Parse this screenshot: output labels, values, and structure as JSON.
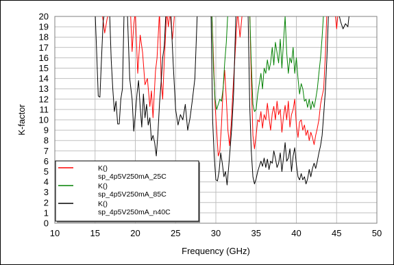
{
  "chart_data": {
    "type": "line",
    "title": "",
    "xlabel": "Frequency (GHz)",
    "ylabel": "K-factor",
    "xlim": [
      10,
      50
    ],
    "ylim": [
      0,
      20
    ],
    "xticks": [
      10,
      15,
      20,
      25,
      30,
      35,
      40,
      45,
      50
    ],
    "yticks": [
      0,
      1,
      2,
      3,
      4,
      5,
      6,
      7,
      8,
      9,
      10,
      11,
      12,
      13,
      14,
      15,
      16,
      17,
      18,
      19,
      20
    ],
    "grid": true,
    "legend": {
      "position": "bottom-left",
      "entries": [
        {
          "line1": "K()",
          "line2": "sp_4p5V250mA_25C",
          "color": "#ff0000"
        },
        {
          "line1": "K()",
          "line2": "sp_4p5V250mA_85C",
          "color": "#008000"
        },
        {
          "line1": "K()",
          "line2": "sp_4p5V250mA_n40C",
          "color": "#000000"
        }
      ]
    },
    "series": [
      {
        "name": "sp_4p5V250mA_25C",
        "color": "#ff0000",
        "points": [
          [
            15.8,
            20.5
          ],
          [
            16.0,
            19.6
          ],
          [
            16.2,
            18.4
          ],
          [
            16.5,
            19.8
          ],
          [
            16.8,
            20.5
          ],
          [
            19.4,
            20.5
          ],
          [
            19.6,
            16.6
          ],
          [
            19.8,
            19.2
          ],
          [
            20.0,
            20.5
          ],
          [
            20.3,
            14.5
          ],
          [
            20.6,
            18.2
          ],
          [
            20.9,
            16.5
          ],
          [
            21.2,
            13.4
          ],
          [
            21.5,
            14.0
          ],
          [
            21.8,
            11.3
          ],
          [
            22.0,
            12.8
          ],
          [
            22.2,
            10.2
          ],
          [
            22.5,
            14.7
          ],
          [
            22.7,
            16.0
          ],
          [
            23.0,
            20.5
          ],
          [
            23.2,
            14.0
          ],
          [
            23.4,
            12.0
          ],
          [
            23.6,
            15.8
          ],
          [
            23.9,
            20.5
          ],
          [
            24.1,
            19.0
          ],
          [
            24.3,
            20.5
          ],
          [
            24.6,
            17.8
          ],
          [
            24.9,
            20.5
          ],
          [
            29.5,
            20.5
          ],
          [
            29.7,
            16.0
          ],
          [
            29.9,
            11.5
          ],
          [
            30.1,
            9.0
          ],
          [
            30.3,
            6.5
          ],
          [
            30.5,
            7.0
          ],
          [
            30.7,
            9.5
          ],
          [
            30.9,
            13.0
          ],
          [
            31.1,
            14.8
          ],
          [
            31.3,
            12.0
          ],
          [
            31.5,
            9.0
          ],
          [
            31.7,
            7.5
          ],
          [
            31.9,
            9.5
          ],
          [
            32.1,
            12.5
          ],
          [
            32.4,
            16.5
          ],
          [
            32.7,
            20.5
          ],
          [
            33.0,
            18.0
          ],
          [
            33.3,
            20.5
          ],
          [
            34.2,
            20.5
          ],
          [
            34.4,
            14.0
          ],
          [
            34.6,
            8.5
          ],
          [
            34.8,
            7.2
          ],
          [
            35.0,
            8.5
          ],
          [
            35.2,
            10.0
          ],
          [
            35.4,
            9.8
          ],
          [
            35.6,
            10.8
          ],
          [
            35.8,
            9.2
          ],
          [
            36.0,
            10.5
          ],
          [
            36.2,
            10.0
          ],
          [
            36.4,
            11.6
          ],
          [
            36.6,
            10.2
          ],
          [
            36.8,
            9.0
          ],
          [
            37.0,
            10.6
          ],
          [
            37.2,
            11.3
          ],
          [
            37.4,
            10.0
          ],
          [
            37.6,
            11.8
          ],
          [
            37.8,
            10.5
          ],
          [
            38.0,
            11.0
          ],
          [
            38.2,
            8.8
          ],
          [
            38.4,
            10.3
          ],
          [
            38.6,
            11.4
          ],
          [
            38.8,
            10.0
          ],
          [
            39.0,
            11.8
          ],
          [
            39.2,
            9.3
          ],
          [
            39.4,
            10.5
          ],
          [
            39.6,
            11.0
          ],
          [
            39.8,
            12.0
          ],
          [
            40.0,
            9.5
          ],
          [
            40.2,
            8.3
          ],
          [
            40.4,
            9.8
          ],
          [
            40.6,
            10.0
          ],
          [
            40.8,
            9.0
          ],
          [
            41.0,
            9.5
          ],
          [
            41.2,
            8.5
          ],
          [
            41.4,
            9.0
          ],
          [
            41.6,
            8.0
          ],
          [
            41.8,
            8.8
          ],
          [
            42.0,
            8.3
          ],
          [
            42.2,
            7.6
          ],
          [
            42.4,
            8.5
          ],
          [
            42.6,
            9.2
          ],
          [
            42.8,
            10.0
          ],
          [
            43.0,
            11.5
          ],
          [
            43.2,
            12.3
          ],
          [
            43.4,
            13.0
          ],
          [
            43.6,
            16.2
          ],
          [
            43.8,
            20.5
          ],
          [
            44.8,
            20.5
          ],
          [
            45.0,
            18.8
          ],
          [
            45.2,
            20.5
          ]
        ]
      },
      {
        "name": "sp_4p5V250mA_85C",
        "color": "#008000",
        "points": [
          [
            29.5,
            20.5
          ],
          [
            29.7,
            15.0
          ],
          [
            29.9,
            12.0
          ],
          [
            30.1,
            11.0
          ],
          [
            30.3,
            11.5
          ],
          [
            30.5,
            12.0
          ],
          [
            30.7,
            11.8
          ],
          [
            30.9,
            13.0
          ],
          [
            31.1,
            15.5
          ],
          [
            31.3,
            17.5
          ],
          [
            31.5,
            20.5
          ],
          [
            34.2,
            20.5
          ],
          [
            34.4,
            15.5
          ],
          [
            34.6,
            11.5
          ],
          [
            34.8,
            10.8
          ],
          [
            35.0,
            11.0
          ],
          [
            35.2,
            12.5
          ],
          [
            35.4,
            13.5
          ],
          [
            35.6,
            14.5
          ],
          [
            35.8,
            13.0
          ],
          [
            36.0,
            15.0
          ],
          [
            36.2,
            14.5
          ],
          [
            36.4,
            15.8
          ],
          [
            36.6,
            14.8
          ],
          [
            36.8,
            15.5
          ],
          [
            37.0,
            17.0
          ],
          [
            37.2,
            15.3
          ],
          [
            37.4,
            17.5
          ],
          [
            37.6,
            16.5
          ],
          [
            37.8,
            15.5
          ],
          [
            38.0,
            17.8
          ],
          [
            38.2,
            15.0
          ],
          [
            38.4,
            17.5
          ],
          [
            38.6,
            20.0
          ],
          [
            38.8,
            16.5
          ],
          [
            39.0,
            14.5
          ],
          [
            39.2,
            16.0
          ],
          [
            39.4,
            15.5
          ],
          [
            39.6,
            17.0
          ],
          [
            39.8,
            14.5
          ],
          [
            40.0,
            16.0
          ],
          [
            40.2,
            14.0
          ],
          [
            40.4,
            12.5
          ],
          [
            40.6,
            13.5
          ],
          [
            40.8,
            13.0
          ],
          [
            41.0,
            11.8
          ],
          [
            41.2,
            12.0
          ],
          [
            41.4,
            11.2
          ],
          [
            41.6,
            12.0
          ],
          [
            41.8,
            11.0
          ],
          [
            42.0,
            11.8
          ],
          [
            42.2,
            11.2
          ],
          [
            42.4,
            12.0
          ],
          [
            42.6,
            13.0
          ],
          [
            42.8,
            14.5
          ],
          [
            43.0,
            16.0
          ],
          [
            43.2,
            18.0
          ],
          [
            43.4,
            20.5
          ]
        ]
      },
      {
        "name": "sp_4p5V250mA_n40C",
        "color": "#000000",
        "points": [
          [
            15.0,
            20.5
          ],
          [
            15.2,
            16.5
          ],
          [
            15.4,
            12.3
          ],
          [
            15.6,
            12.2
          ],
          [
            15.8,
            16.0
          ],
          [
            16.0,
            19.5
          ],
          [
            16.2,
            20.5
          ],
          [
            16.8,
            20.5
          ],
          [
            17.0,
            15.8
          ],
          [
            17.2,
            13.0
          ],
          [
            17.4,
            10.8
          ],
          [
            17.6,
            11.8
          ],
          [
            17.8,
            9.6
          ],
          [
            18.0,
            9.6
          ],
          [
            18.2,
            12.0
          ],
          [
            18.4,
            13.0
          ],
          [
            18.6,
            20.5
          ],
          [
            19.0,
            20.5
          ],
          [
            19.3,
            14.0
          ],
          [
            19.6,
            12.0
          ],
          [
            19.8,
            8.9
          ],
          [
            20.0,
            10.5
          ],
          [
            20.2,
            12.5
          ],
          [
            20.4,
            13.8
          ],
          [
            20.6,
            11.2
          ],
          [
            20.8,
            9.3
          ],
          [
            21.0,
            12.5
          ],
          [
            21.2,
            10.2
          ],
          [
            21.4,
            11.5
          ],
          [
            21.6,
            9.5
          ],
          [
            21.8,
            10.2
          ],
          [
            22.0,
            8.0
          ],
          [
            22.2,
            8.5
          ],
          [
            22.4,
            7.8
          ],
          [
            22.6,
            6.5
          ],
          [
            22.8,
            8.6
          ],
          [
            23.0,
            11.6
          ],
          [
            23.2,
            13.6
          ],
          [
            23.4,
            16.0
          ],
          [
            23.6,
            17.2
          ],
          [
            23.8,
            20.5
          ],
          [
            24.4,
            20.5
          ],
          [
            24.7,
            15.5
          ],
          [
            25.0,
            11.0
          ],
          [
            25.3,
            9.5
          ],
          [
            25.6,
            10.5
          ],
          [
            25.9,
            10.0
          ],
          [
            26.2,
            11.5
          ],
          [
            26.5,
            9.0
          ],
          [
            26.8,
            10.2
          ],
          [
            27.1,
            12.0
          ],
          [
            27.4,
            14.0
          ],
          [
            27.7,
            20.5
          ],
          [
            29.4,
            20.5
          ],
          [
            29.6,
            10.0
          ],
          [
            29.8,
            6.5
          ],
          [
            30.0,
            4.2
          ],
          [
            30.2,
            4.1
          ],
          [
            30.4,
            5.0
          ],
          [
            30.6,
            6.8
          ],
          [
            30.8,
            5.8
          ],
          [
            31.0,
            4.5
          ],
          [
            31.2,
            5.0
          ],
          [
            31.4,
            3.7
          ],
          [
            31.6,
            5.5
          ],
          [
            31.8,
            7.5
          ],
          [
            32.0,
            9.5
          ],
          [
            32.2,
            12.5
          ],
          [
            32.5,
            20.5
          ],
          [
            34.0,
            20.5
          ],
          [
            34.2,
            11.5
          ],
          [
            34.4,
            7.0
          ],
          [
            34.6,
            4.5
          ],
          [
            34.8,
            3.8
          ],
          [
            35.0,
            4.3
          ],
          [
            35.2,
            5.0
          ],
          [
            35.4,
            5.5
          ],
          [
            35.6,
            6.0
          ],
          [
            35.8,
            5.5
          ],
          [
            36.0,
            6.3
          ],
          [
            36.2,
            5.4
          ],
          [
            36.4,
            6.2
          ],
          [
            36.6,
            5.2
          ],
          [
            36.8,
            6.0
          ],
          [
            37.0,
            5.8
          ],
          [
            37.2,
            7.0
          ],
          [
            37.4,
            6.3
          ],
          [
            37.6,
            5.4
          ],
          [
            37.8,
            5.8
          ],
          [
            38.0,
            6.8
          ],
          [
            38.2,
            5.0
          ],
          [
            38.4,
            6.3
          ],
          [
            38.6,
            7.8
          ],
          [
            38.8,
            6.0
          ],
          [
            39.0,
            6.3
          ],
          [
            39.2,
            7.2
          ],
          [
            39.4,
            5.0
          ],
          [
            39.6,
            6.5
          ],
          [
            39.8,
            7.3
          ],
          [
            40.0,
            5.7
          ],
          [
            40.2,
            4.5
          ],
          [
            40.4,
            4.2
          ],
          [
            40.6,
            4.8
          ],
          [
            40.8,
            4.2
          ],
          [
            41.0,
            4.5
          ],
          [
            41.2,
            3.8
          ],
          [
            41.4,
            4.3
          ],
          [
            41.6,
            5.2
          ],
          [
            41.8,
            4.5
          ],
          [
            42.0,
            5.3
          ],
          [
            42.2,
            5.8
          ],
          [
            42.4,
            5.3
          ],
          [
            42.6,
            6.0
          ],
          [
            42.8,
            6.8
          ],
          [
            43.0,
            7.5
          ],
          [
            43.2,
            8.5
          ],
          [
            43.4,
            10.5
          ],
          [
            43.6,
            12.8
          ],
          [
            43.8,
            16.0
          ],
          [
            44.0,
            20.5
          ],
          [
            45.2,
            20.5
          ],
          [
            45.5,
            19.5
          ],
          [
            45.8,
            18.8
          ],
          [
            46.1,
            19.3
          ],
          [
            46.4,
            19.0
          ],
          [
            46.6,
            20.5
          ]
        ]
      }
    ]
  }
}
